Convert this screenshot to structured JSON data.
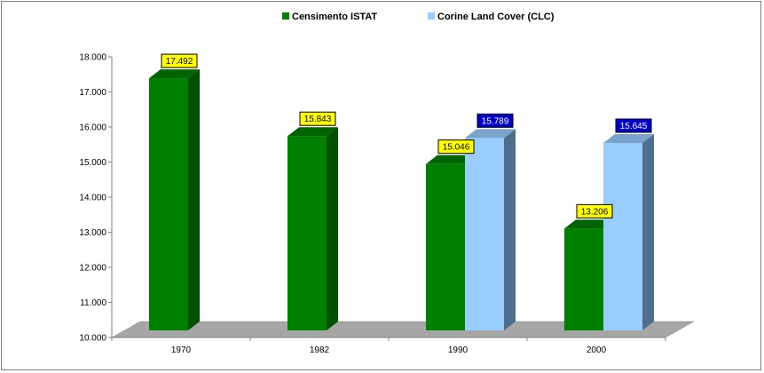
{
  "chart_data": {
    "type": "bar",
    "categories": [
      "1970",
      "1982",
      "1990",
      "2000"
    ],
    "series": [
      {
        "name": "Censimento ISTAT",
        "values": [
          17492,
          15843,
          15046,
          13206
        ],
        "labels": [
          "17.492",
          "15.843",
          "15.046",
          "13.206"
        ],
        "color": "#008000",
        "side_color": "#005000",
        "top_color": "#006400",
        "label_bg": "#ffff00",
        "label_fg": "#000000"
      },
      {
        "name": "Corine Land Cover (CLC)",
        "values": [
          null,
          null,
          15789,
          15645
        ],
        "labels": [
          null,
          null,
          "15.789",
          "15.645"
        ],
        "color": "#99ccff",
        "side_color": "#4f6d8c",
        "top_color": "#7aa3cc",
        "label_bg": "#0000cc",
        "label_fg": "#ffffff"
      }
    ],
    "yticks": [
      "10.000",
      "11.000",
      "12.000",
      "13.000",
      "14.000",
      "15.000",
      "16.000",
      "17.000",
      "18.000"
    ],
    "ylim": [
      10000,
      18000
    ],
    "legend_position": "top-center",
    "grid": false,
    "floor_color": "#a6a6a6"
  }
}
